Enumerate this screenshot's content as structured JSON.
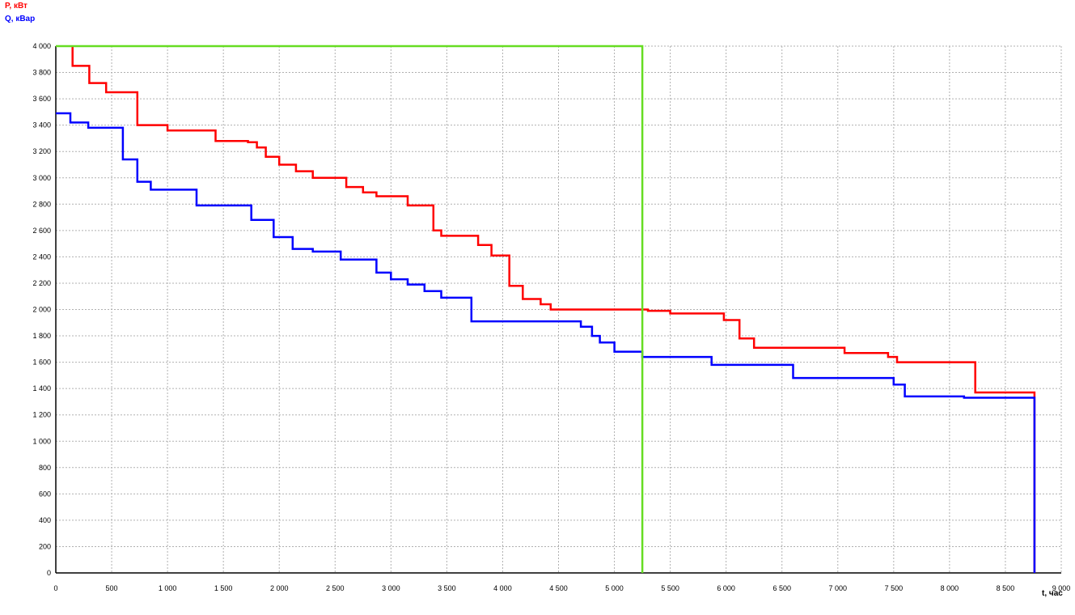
{
  "chart_data": {
    "type": "line",
    "step": true,
    "legend": [
      {
        "label": "P, кВт",
        "color": "#ff0000"
      },
      {
        "label": "Q, кВар",
        "color": "#0000ff"
      }
    ],
    "xunit": "t, час",
    "xlim": [
      0,
      9000
    ],
    "ylim": [
      0,
      4000
    ],
    "xticks": [
      0,
      500,
      1000,
      1500,
      2000,
      2500,
      3000,
      3500,
      4000,
      4500,
      5000,
      5500,
      6000,
      6500,
      7000,
      7500,
      8000,
      8500,
      9000
    ],
    "xtick_labels": [
      "0",
      "500",
      "1 000",
      "1 500",
      "2 000",
      "2 500",
      "3 000",
      "3 500",
      "4 000",
      "4 500",
      "5 000",
      "5 500",
      "6 000",
      "6 500",
      "7 000",
      "7 500",
      "8 000",
      "8 500",
      "9 000"
    ],
    "yticks": [
      0,
      200,
      400,
      600,
      800,
      1000,
      1200,
      1400,
      1600,
      1800,
      2000,
      2200,
      2400,
      2600,
      2800,
      3000,
      3200,
      3400,
      3600,
      3800,
      4000
    ],
    "ytick_labels": [
      "0",
      "200",
      "400",
      "600",
      "800",
      "1 000",
      "1 200",
      "1 400",
      "1 600",
      "1 800",
      "2 000",
      "2 200",
      "2 400",
      "2 600",
      "2 800",
      "3 000",
      "3 200",
      "3 400",
      "3 600",
      "3 800",
      "4 000"
    ],
    "grid": true,
    "series": [
      {
        "color": "#ff0000",
        "x": [
          150,
          150,
          300,
          300,
          450,
          450,
          730,
          730,
          1000,
          1000,
          1430,
          1430,
          1720,
          1720,
          1800,
          1800,
          1880,
          1880,
          2000,
          2000,
          2150,
          2150,
          2300,
          2300,
          2600,
          2600,
          2750,
          2750,
          2870,
          2870,
          3150,
          3150,
          3380,
          3380,
          3450,
          3450,
          3780,
          3780,
          3900,
          3900,
          4060,
          4060,
          4180,
          4180,
          4340,
          4340,
          4430,
          4430,
          5300,
          5300,
          5500,
          5500,
          5980,
          5980,
          6120,
          6120,
          6250,
          6250,
          7060,
          7060,
          7450,
          7450,
          7530,
          7530,
          8230,
          8230,
          8760,
          8760
        ],
        "y": [
          4000,
          3850,
          3850,
          3720,
          3720,
          3650,
          3650,
          3400,
          3400,
          3360,
          3360,
          3280,
          3280,
          3270,
          3270,
          3230,
          3230,
          3160,
          3160,
          3100,
          3100,
          3050,
          3050,
          3000,
          3000,
          2930,
          2930,
          2890,
          2890,
          2860,
          2860,
          2790,
          2790,
          2600,
          2600,
          2560,
          2560,
          2490,
          2490,
          2410,
          2410,
          2180,
          2180,
          2080,
          2080,
          2040,
          2040,
          2000,
          2000,
          1990,
          1990,
          1970,
          1970,
          1920,
          1920,
          1780,
          1780,
          1710,
          1710,
          1670,
          1670,
          1640,
          1640,
          1600,
          1600,
          1370,
          1370,
          0
        ]
      },
      {
        "color": "#0000ff",
        "x": [
          0,
          130,
          130,
          290,
          290,
          600,
          600,
          730,
          730,
          850,
          850,
          1260,
          1260,
          1750,
          1750,
          1950,
          1950,
          2120,
          2120,
          2300,
          2300,
          2550,
          2550,
          2870,
          2870,
          3000,
          3000,
          3150,
          3150,
          3300,
          3300,
          3450,
          3450,
          3720,
          3720,
          4700,
          4700,
          4800,
          4800,
          4870,
          4870,
          5000,
          5000,
          5250,
          5250,
          5870,
          5870,
          6600,
          6600,
          7500,
          7500,
          7600,
          7600,
          8130,
          8130,
          8760,
          8760
        ],
        "y": [
          3490,
          3490,
          3420,
          3420,
          3380,
          3380,
          3140,
          3140,
          2970,
          2970,
          2910,
          2910,
          2790,
          2790,
          2680,
          2680,
          2550,
          2550,
          2460,
          2460,
          2440,
          2440,
          2380,
          2380,
          2280,
          2280,
          2230,
          2230,
          2190,
          2190,
          2140,
          2140,
          2090,
          2090,
          1910,
          1910,
          1870,
          1870,
          1800,
          1800,
          1750,
          1750,
          1680,
          1680,
          1640,
          1640,
          1580,
          1580,
          1480,
          1480,
          1430,
          1430,
          1340,
          1340,
          1330,
          1330,
          0
        ]
      },
      {
        "color": "#66dd22",
        "x": [
          0,
          5250,
          5250
        ],
        "y": [
          4000,
          4000,
          0
        ]
      }
    ]
  }
}
